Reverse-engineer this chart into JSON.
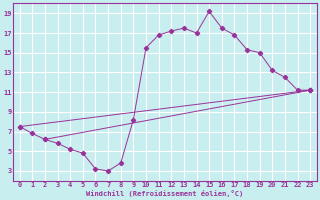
{
  "xlabel": "Windchill (Refroidissement éolien,°C)",
  "bg_color": "#c8eef0",
  "grid_color": "#ffffff",
  "line_color": "#993399",
  "xlim": [
    -0.5,
    23.5
  ],
  "ylim": [
    2,
    20
  ],
  "xticks": [
    0,
    1,
    2,
    3,
    4,
    5,
    6,
    7,
    8,
    9,
    10,
    11,
    12,
    13,
    14,
    15,
    16,
    17,
    18,
    19,
    20,
    21,
    22,
    23
  ],
  "yticks": [
    3,
    5,
    7,
    9,
    11,
    13,
    15,
    17,
    19
  ],
  "curve1_x": [
    0,
    1,
    2,
    3,
    4,
    5,
    6,
    7,
    8,
    9,
    10,
    11,
    12,
    13,
    14,
    15,
    16,
    17,
    18,
    19,
    20,
    21,
    22,
    23
  ],
  "curve1_y": [
    7.5,
    6.8,
    6.2,
    5.8,
    5.2,
    4.8,
    3.2,
    3.0,
    3.8,
    8.2,
    15.5,
    16.8,
    17.2,
    17.5,
    17.0,
    19.2,
    17.5,
    16.8,
    15.3,
    15.0,
    13.2,
    12.5,
    11.2,
    11.2
  ],
  "line2_x": [
    0,
    23
  ],
  "line2_y": [
    7.5,
    11.2
  ],
  "line3_x": [
    2,
    23
  ],
  "line3_y": [
    6.2,
    11.2
  ],
  "xlabel_fontsize": 5.0,
  "tick_fontsize": 5.0
}
